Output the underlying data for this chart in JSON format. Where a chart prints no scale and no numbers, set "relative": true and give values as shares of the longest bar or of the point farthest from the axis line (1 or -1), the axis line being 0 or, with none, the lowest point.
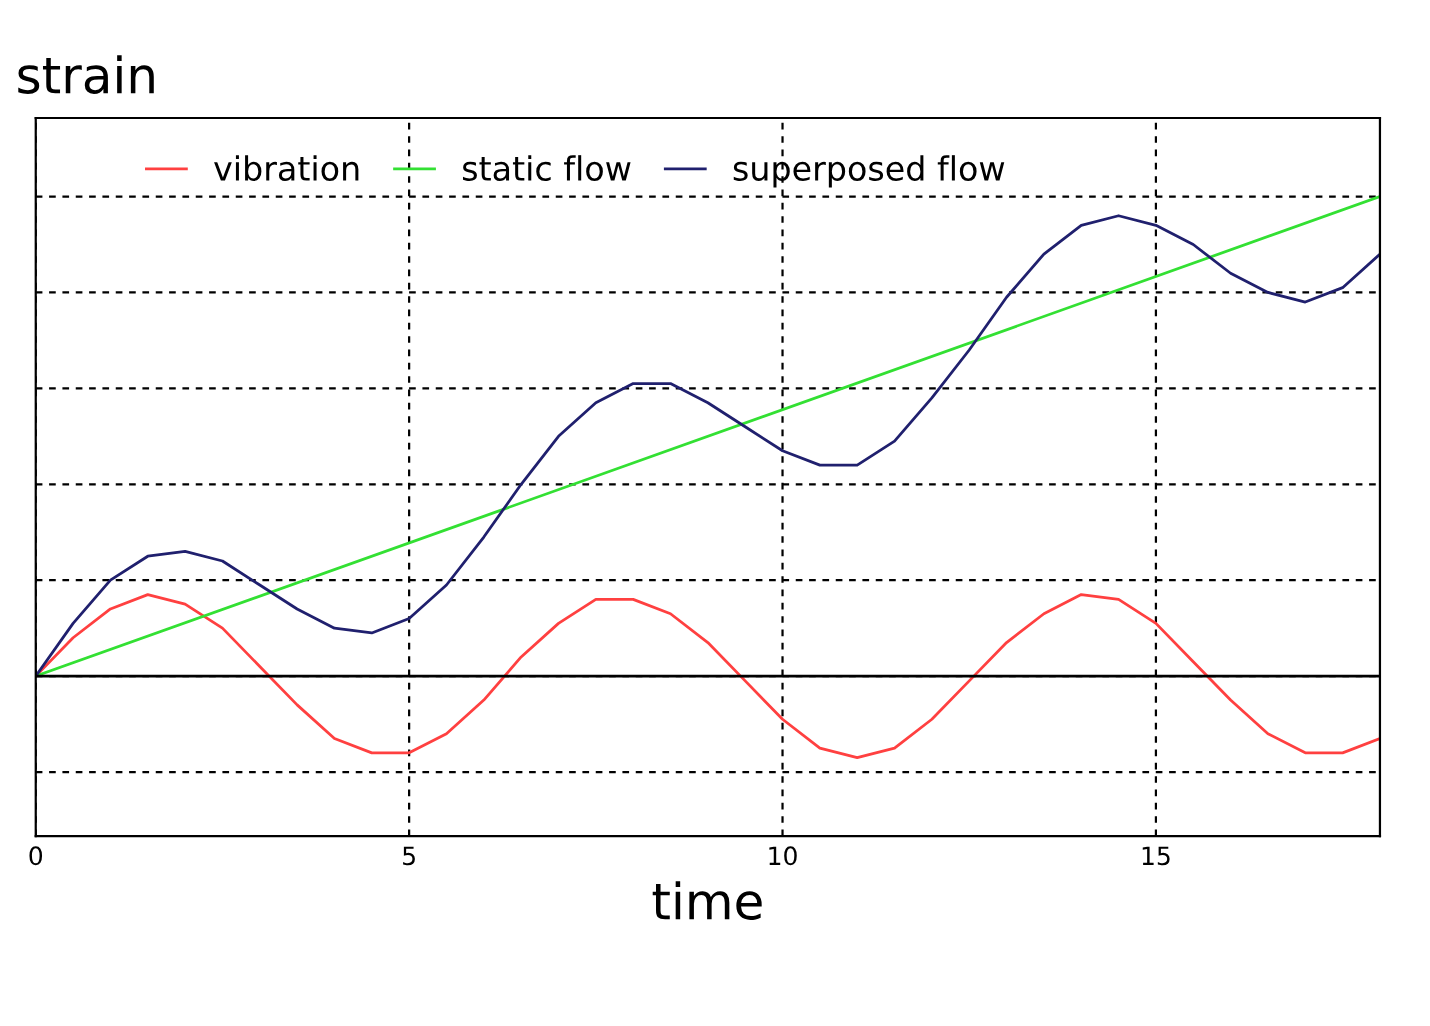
{
  "chart_data": {
    "type": "line",
    "relative": true,
    "ylabel": "strain",
    "xlabel": "time",
    "xlim": [
      0,
      18
    ],
    "xticks": [
      0,
      5,
      10,
      15
    ],
    "grid": true,
    "legend": "top left",
    "line_style": "solid",
    "marker": "none",
    "x": [
      0,
      0.5,
      1,
      1.5,
      2,
      2.5,
      3,
      3.5,
      4,
      4.5,
      5,
      5.5,
      6,
      6.5,
      7,
      7.5,
      8,
      8.5,
      9,
      9.5,
      10,
      10.5,
      11,
      11.5,
      12,
      12.5,
      13,
      13.5,
      14,
      14.5,
      15,
      15.5,
      16,
      16.5,
      17,
      17.5,
      18
    ],
    "series": [
      {
        "name": "vibration",
        "color": "#ff4040",
        "values": [
          0,
          0.08,
          0.14,
          0.17,
          0.15,
          0.1,
          0.02,
          -0.06,
          -0.13,
          -0.16,
          -0.16,
          -0.12,
          -0.05,
          0.04,
          0.11,
          0.16,
          0.16,
          0.13,
          0.07,
          -0.01,
          -0.09,
          -0.15,
          -0.17,
          -0.15,
          -0.09,
          -0.01,
          0.07,
          0.13,
          0.17,
          0.16,
          0.11,
          0.03,
          -0.05,
          -0.12,
          -0.16,
          -0.16,
          -0.13
        ]
      },
      {
        "name": "static flow",
        "color": "#33e033",
        "x": [
          0,
          18
        ],
        "values": [
          0,
          1
        ]
      },
      {
        "name": "superposed flow",
        "color": "#20206e",
        "values": [
          0,
          0.11,
          0.2,
          0.25,
          0.26,
          0.24,
          0.19,
          0.14,
          0.1,
          0.09,
          0.12,
          0.19,
          0.29,
          0.4,
          0.5,
          0.57,
          0.61,
          0.61,
          0.57,
          0.52,
          0.47,
          0.44,
          0.44,
          0.49,
          0.58,
          0.68,
          0.79,
          0.88,
          0.94,
          0.96,
          0.94,
          0.9,
          0.84,
          0.8,
          0.78,
          0.81,
          0.88
        ]
      }
    ]
  }
}
